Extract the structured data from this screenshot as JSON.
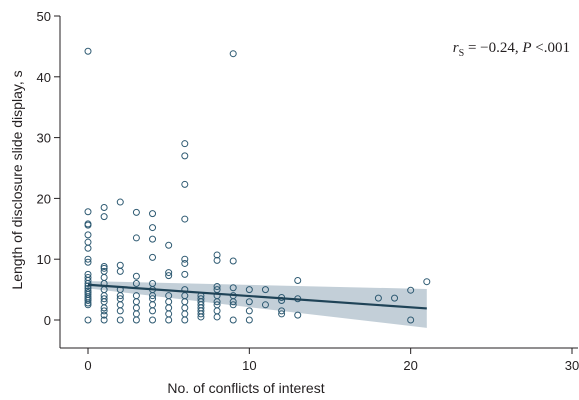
{
  "chart_data": {
    "type": "scatter",
    "xlabel": "No. of conflicts of interest",
    "ylabel": "Length of disclosure slide display, s",
    "xlim": [
      0,
      30
    ],
    "ylim": [
      0,
      50
    ],
    "x_ticks": [
      0,
      10,
      20,
      30
    ],
    "y_ticks": [
      0,
      10,
      20,
      30,
      40,
      50
    ],
    "x_tick_labels": [
      "0",
      "10",
      "20",
      "30"
    ],
    "y_tick_labels": [
      "0",
      "10",
      "20",
      "30",
      "40",
      "50"
    ],
    "annotation": {
      "r": "r",
      "sub": "S",
      "eq": " = −0.24, ",
      "p": "P",
      "pval": " <.001"
    },
    "grid": false,
    "points": [
      [
        0,
        44.2
      ],
      [
        0,
        17.8
      ],
      [
        0,
        15.8
      ],
      [
        0,
        15.6
      ],
      [
        0,
        14
      ],
      [
        0,
        12.8
      ],
      [
        0,
        11.8
      ],
      [
        0,
        10
      ],
      [
        0,
        9.5
      ],
      [
        0,
        7.5
      ],
      [
        0,
        7
      ],
      [
        0,
        6.5
      ],
      [
        0,
        6
      ],
      [
        0,
        5.6
      ],
      [
        0,
        5.2
      ],
      [
        0,
        4.8
      ],
      [
        0,
        4.5
      ],
      [
        0,
        4.2
      ],
      [
        0,
        3.8
      ],
      [
        0,
        3.5
      ],
      [
        0,
        3.2
      ],
      [
        0,
        2.8
      ],
      [
        0,
        2.5
      ],
      [
        0,
        0
      ],
      [
        1,
        18.5
      ],
      [
        1,
        17
      ],
      [
        1,
        8.8
      ],
      [
        1,
        8.5
      ],
      [
        1,
        8
      ],
      [
        1,
        7
      ],
      [
        1,
        6
      ],
      [
        1,
        5
      ],
      [
        1,
        4
      ],
      [
        1,
        3.5
      ],
      [
        1,
        3
      ],
      [
        1,
        2
      ],
      [
        1,
        1.5
      ],
      [
        1,
        0.8
      ],
      [
        1,
        0
      ],
      [
        2,
        19.4
      ],
      [
        2,
        9
      ],
      [
        2,
        8
      ],
      [
        2,
        5
      ],
      [
        2,
        4
      ],
      [
        2,
        3.5
      ],
      [
        2,
        2.5
      ],
      [
        2,
        1.5
      ],
      [
        2,
        0
      ],
      [
        3,
        17.7
      ],
      [
        3,
        13.5
      ],
      [
        3,
        7.2
      ],
      [
        3,
        6
      ],
      [
        3,
        4
      ],
      [
        3,
        3
      ],
      [
        3,
        2
      ],
      [
        3,
        1
      ],
      [
        3,
        0
      ],
      [
        4,
        17.5
      ],
      [
        4,
        15.2
      ],
      [
        4,
        13.3
      ],
      [
        4,
        10.3
      ],
      [
        4,
        6
      ],
      [
        4,
        5
      ],
      [
        4,
        4
      ],
      [
        4,
        3.5
      ],
      [
        4,
        2.5
      ],
      [
        4,
        1.5
      ],
      [
        4,
        0
      ],
      [
        5,
        12.3
      ],
      [
        5,
        7.8
      ],
      [
        5,
        7.3
      ],
      [
        5,
        4
      ],
      [
        5,
        3
      ],
      [
        5,
        2
      ],
      [
        5,
        1
      ],
      [
        5,
        0
      ],
      [
        6,
        29
      ],
      [
        6,
        27
      ],
      [
        6,
        22.3
      ],
      [
        6,
        16.6
      ],
      [
        6,
        10
      ],
      [
        6,
        9.3
      ],
      [
        6,
        7.5
      ],
      [
        6,
        5
      ],
      [
        6,
        4
      ],
      [
        6,
        3
      ],
      [
        6,
        2
      ],
      [
        6,
        1
      ],
      [
        6,
        0
      ],
      [
        7,
        4
      ],
      [
        7,
        3.5
      ],
      [
        7,
        3
      ],
      [
        7,
        2.5
      ],
      [
        7,
        2
      ],
      [
        7,
        1.5
      ],
      [
        7,
        1
      ],
      [
        7,
        0.5
      ],
      [
        8,
        10.7
      ],
      [
        8,
        9.8
      ],
      [
        8,
        5.5
      ],
      [
        8,
        5
      ],
      [
        8,
        4
      ],
      [
        8,
        3
      ],
      [
        8,
        2.5
      ],
      [
        8,
        1.5
      ],
      [
        8,
        0.5
      ],
      [
        9,
        43.8
      ],
      [
        9,
        9.7
      ],
      [
        9,
        5.3
      ],
      [
        9,
        4
      ],
      [
        9,
        3
      ],
      [
        9,
        2.5
      ],
      [
        9,
        0
      ],
      [
        10,
        5
      ],
      [
        10,
        3
      ],
      [
        10,
        1.5
      ],
      [
        10,
        0
      ],
      [
        11,
        5
      ],
      [
        11,
        2.5
      ],
      [
        12,
        3.7
      ],
      [
        12,
        3.2
      ],
      [
        12,
        1.5
      ],
      [
        12,
        1
      ],
      [
        13,
        6.5
      ],
      [
        13,
        3.5
      ],
      [
        13,
        0.8
      ],
      [
        18,
        3.6
      ],
      [
        19,
        3.6
      ],
      [
        20,
        4.9
      ],
      [
        20,
        0
      ],
      [
        21,
        6.3
      ]
    ],
    "fit_line": {
      "x": [
        0,
        21
      ],
      "y": [
        5.8,
        1.9
      ],
      "ci_upper": [
        6.4,
        5.1
      ],
      "ci_lower": [
        5.2,
        -1.3
      ]
    }
  }
}
